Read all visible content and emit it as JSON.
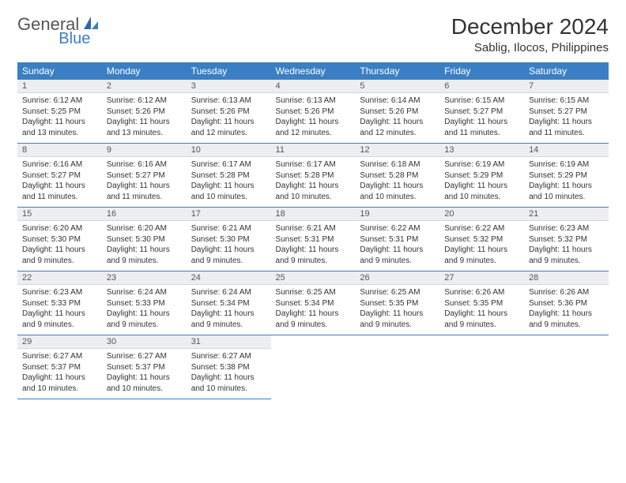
{
  "logo": {
    "text1": "General",
    "text2": "Blue"
  },
  "title": "December 2024",
  "location": "Sablig, Ilocos, Philippines",
  "colors": {
    "header_bg": "#3a7fc4",
    "header_text": "#ffffff",
    "daynum_bg": "#eceef0",
    "border": "#3a7fc4",
    "background": "#ffffff"
  },
  "day_headers": [
    "Sunday",
    "Monday",
    "Tuesday",
    "Wednesday",
    "Thursday",
    "Friday",
    "Saturday"
  ],
  "days": [
    {
      "n": "1",
      "sunrise": "Sunrise: 6:12 AM",
      "sunset": "Sunset: 5:25 PM",
      "daylight": "Daylight: 11 hours and 13 minutes."
    },
    {
      "n": "2",
      "sunrise": "Sunrise: 6:12 AM",
      "sunset": "Sunset: 5:26 PM",
      "daylight": "Daylight: 11 hours and 13 minutes."
    },
    {
      "n": "3",
      "sunrise": "Sunrise: 6:13 AM",
      "sunset": "Sunset: 5:26 PM",
      "daylight": "Daylight: 11 hours and 12 minutes."
    },
    {
      "n": "4",
      "sunrise": "Sunrise: 6:13 AM",
      "sunset": "Sunset: 5:26 PM",
      "daylight": "Daylight: 11 hours and 12 minutes."
    },
    {
      "n": "5",
      "sunrise": "Sunrise: 6:14 AM",
      "sunset": "Sunset: 5:26 PM",
      "daylight": "Daylight: 11 hours and 12 minutes."
    },
    {
      "n": "6",
      "sunrise": "Sunrise: 6:15 AM",
      "sunset": "Sunset: 5:27 PM",
      "daylight": "Daylight: 11 hours and 11 minutes."
    },
    {
      "n": "7",
      "sunrise": "Sunrise: 6:15 AM",
      "sunset": "Sunset: 5:27 PM",
      "daylight": "Daylight: 11 hours and 11 minutes."
    },
    {
      "n": "8",
      "sunrise": "Sunrise: 6:16 AM",
      "sunset": "Sunset: 5:27 PM",
      "daylight": "Daylight: 11 hours and 11 minutes."
    },
    {
      "n": "9",
      "sunrise": "Sunrise: 6:16 AM",
      "sunset": "Sunset: 5:27 PM",
      "daylight": "Daylight: 11 hours and 11 minutes."
    },
    {
      "n": "10",
      "sunrise": "Sunrise: 6:17 AM",
      "sunset": "Sunset: 5:28 PM",
      "daylight": "Daylight: 11 hours and 10 minutes."
    },
    {
      "n": "11",
      "sunrise": "Sunrise: 6:17 AM",
      "sunset": "Sunset: 5:28 PM",
      "daylight": "Daylight: 11 hours and 10 minutes."
    },
    {
      "n": "12",
      "sunrise": "Sunrise: 6:18 AM",
      "sunset": "Sunset: 5:28 PM",
      "daylight": "Daylight: 11 hours and 10 minutes."
    },
    {
      "n": "13",
      "sunrise": "Sunrise: 6:19 AM",
      "sunset": "Sunset: 5:29 PM",
      "daylight": "Daylight: 11 hours and 10 minutes."
    },
    {
      "n": "14",
      "sunrise": "Sunrise: 6:19 AM",
      "sunset": "Sunset: 5:29 PM",
      "daylight": "Daylight: 11 hours and 10 minutes."
    },
    {
      "n": "15",
      "sunrise": "Sunrise: 6:20 AM",
      "sunset": "Sunset: 5:30 PM",
      "daylight": "Daylight: 11 hours and 9 minutes."
    },
    {
      "n": "16",
      "sunrise": "Sunrise: 6:20 AM",
      "sunset": "Sunset: 5:30 PM",
      "daylight": "Daylight: 11 hours and 9 minutes."
    },
    {
      "n": "17",
      "sunrise": "Sunrise: 6:21 AM",
      "sunset": "Sunset: 5:30 PM",
      "daylight": "Daylight: 11 hours and 9 minutes."
    },
    {
      "n": "18",
      "sunrise": "Sunrise: 6:21 AM",
      "sunset": "Sunset: 5:31 PM",
      "daylight": "Daylight: 11 hours and 9 minutes."
    },
    {
      "n": "19",
      "sunrise": "Sunrise: 6:22 AM",
      "sunset": "Sunset: 5:31 PM",
      "daylight": "Daylight: 11 hours and 9 minutes."
    },
    {
      "n": "20",
      "sunrise": "Sunrise: 6:22 AM",
      "sunset": "Sunset: 5:32 PM",
      "daylight": "Daylight: 11 hours and 9 minutes."
    },
    {
      "n": "21",
      "sunrise": "Sunrise: 6:23 AM",
      "sunset": "Sunset: 5:32 PM",
      "daylight": "Daylight: 11 hours and 9 minutes."
    },
    {
      "n": "22",
      "sunrise": "Sunrise: 6:23 AM",
      "sunset": "Sunset: 5:33 PM",
      "daylight": "Daylight: 11 hours and 9 minutes."
    },
    {
      "n": "23",
      "sunrise": "Sunrise: 6:24 AM",
      "sunset": "Sunset: 5:33 PM",
      "daylight": "Daylight: 11 hours and 9 minutes."
    },
    {
      "n": "24",
      "sunrise": "Sunrise: 6:24 AM",
      "sunset": "Sunset: 5:34 PM",
      "daylight": "Daylight: 11 hours and 9 minutes."
    },
    {
      "n": "25",
      "sunrise": "Sunrise: 6:25 AM",
      "sunset": "Sunset: 5:34 PM",
      "daylight": "Daylight: 11 hours and 9 minutes."
    },
    {
      "n": "26",
      "sunrise": "Sunrise: 6:25 AM",
      "sunset": "Sunset: 5:35 PM",
      "daylight": "Daylight: 11 hours and 9 minutes."
    },
    {
      "n": "27",
      "sunrise": "Sunrise: 6:26 AM",
      "sunset": "Sunset: 5:35 PM",
      "daylight": "Daylight: 11 hours and 9 minutes."
    },
    {
      "n": "28",
      "sunrise": "Sunrise: 6:26 AM",
      "sunset": "Sunset: 5:36 PM",
      "daylight": "Daylight: 11 hours and 9 minutes."
    },
    {
      "n": "29",
      "sunrise": "Sunrise: 6:27 AM",
      "sunset": "Sunset: 5:37 PM",
      "daylight": "Daylight: 11 hours and 10 minutes."
    },
    {
      "n": "30",
      "sunrise": "Sunrise: 6:27 AM",
      "sunset": "Sunset: 5:37 PM",
      "daylight": "Daylight: 11 hours and 10 minutes."
    },
    {
      "n": "31",
      "sunrise": "Sunrise: 6:27 AM",
      "sunset": "Sunset: 5:38 PM",
      "daylight": "Daylight: 11 hours and 10 minutes."
    }
  ]
}
